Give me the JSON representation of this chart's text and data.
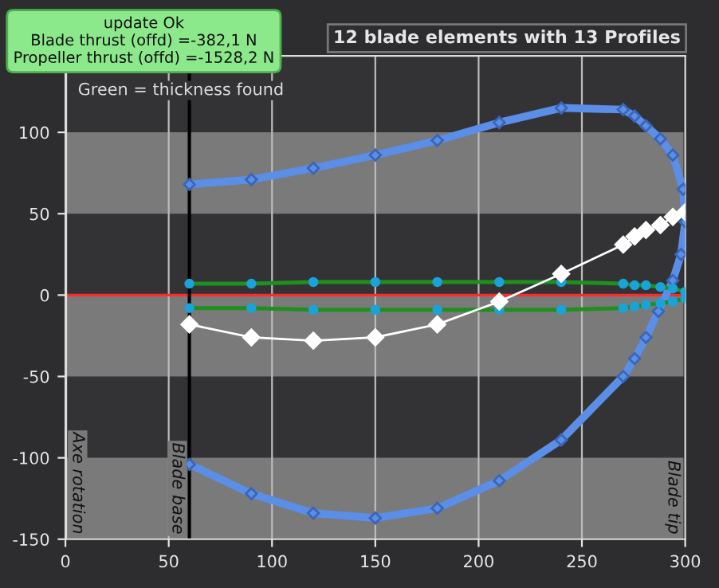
{
  "chart_data": {
    "type": "line",
    "title": "12 blade elements with 13 Profiles",
    "annotations": [
      "update Ok\nBlade thrust (offd) =-382,1 N\nPropeller thrust (offd) =-1528,2 N",
      "Green = thickness found"
    ],
    "xlim": [
      0,
      300
    ],
    "xticks": [
      0,
      50,
      100,
      150,
      200,
      250,
      300
    ],
    "ylim": [
      -150,
      147
    ],
    "yticks": [
      -150,
      -100,
      -50,
      0,
      50,
      100
    ],
    "grid": "x",
    "legend": false,
    "bands": [
      {
        "axis": "y",
        "from": 50,
        "to": 100,
        "color": "#7a7a7a"
      },
      {
        "axis": "y",
        "from": -50,
        "to": 0,
        "color": "#7a7a7a"
      },
      {
        "axis": "y",
        "from": -150,
        "to": -100,
        "color": "#7a7a7a"
      }
    ],
    "ref_lines": [
      {
        "axis": "y",
        "value": 0,
        "color": "#ff2a2a"
      },
      {
        "axis": "x",
        "value": 0,
        "label": "Axe rotation",
        "color": "#dddddd"
      },
      {
        "axis": "x",
        "value": 60,
        "label": "Blade base",
        "color": "#000000"
      },
      {
        "axis": "x",
        "value": 300,
        "label": "Blade tip",
        "color": "#222222"
      }
    ],
    "series": [
      {
        "color": "#5b8ee6",
        "marker": "diamond",
        "x": [
          60,
          90,
          120,
          150,
          180,
          210,
          240,
          270,
          275.5,
          281,
          288,
          294,
          299,
          300,
          298,
          294,
          287,
          281,
          275.5,
          270,
          240,
          210,
          180,
          150,
          120,
          90,
          60
        ],
        "values": [
          68,
          71,
          78,
          86,
          95,
          106,
          115,
          114,
          110,
          104,
          96,
          86,
          65,
          45,
          25,
          9,
          -10,
          -26,
          -39,
          -50,
          -89,
          -114,
          -131,
          -137,
          -134,
          -122,
          -104
        ]
      },
      {
        "color": "#1f8f1f",
        "marker": "circle",
        "x": [
          60,
          90,
          120,
          150,
          180,
          210,
          240,
          270,
          275.5,
          281,
          288,
          294,
          300
        ],
        "values": [
          7,
          7,
          8,
          8,
          8,
          8,
          8,
          7,
          6,
          6,
          5,
          4,
          2
        ]
      },
      {
        "color": "#1f8f1f",
        "marker": "circle",
        "x": [
          60,
          90,
          120,
          150,
          180,
          210,
          240,
          270,
          275.5,
          281,
          288,
          294,
          300
        ],
        "values": [
          -8,
          -8,
          -9,
          -9,
          -9,
          -9,
          -9,
          -8,
          -7,
          -6,
          -5,
          -4,
          -2
        ]
      },
      {
        "color": "#ffffff",
        "marker": "diamond",
        "x": [
          60,
          90,
          120,
          150,
          180,
          210,
          240,
          270,
          275.5,
          281,
          288,
          294,
          300
        ],
        "values": [
          -18,
          -26,
          -28,
          -26,
          -18,
          -4,
          13,
          31,
          36,
          40,
          43,
          48,
          51
        ]
      }
    ]
  }
}
